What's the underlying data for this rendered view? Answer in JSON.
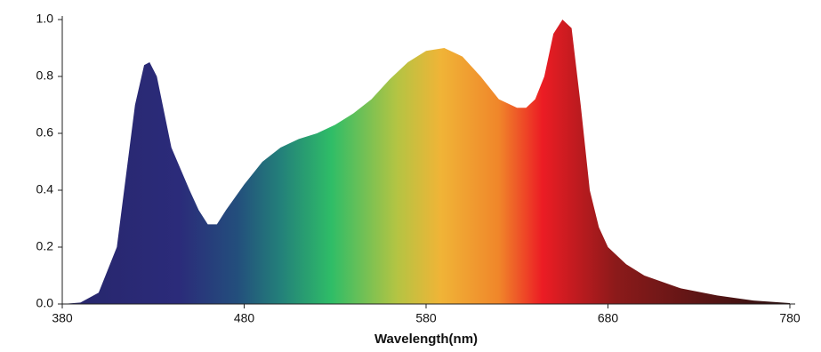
{
  "chart_data": {
    "type": "area",
    "xlabel": "Wavelength(nm)",
    "x": [
      380,
      390,
      400,
      410,
      415,
      420,
      425,
      428,
      432,
      440,
      450,
      455,
      460,
      465,
      470,
      480,
      490,
      500,
      510,
      520,
      530,
      540,
      550,
      560,
      570,
      580,
      590,
      600,
      610,
      620,
      630,
      635,
      640,
      645,
      650,
      655,
      660,
      665,
      670,
      675,
      680,
      690,
      700,
      720,
      740,
      760,
      780
    ],
    "values": [
      0,
      0.005,
      0.04,
      0.2,
      0.45,
      0.7,
      0.84,
      0.85,
      0.8,
      0.55,
      0.4,
      0.33,
      0.28,
      0.28,
      0.33,
      0.42,
      0.5,
      0.55,
      0.58,
      0.6,
      0.63,
      0.67,
      0.72,
      0.79,
      0.85,
      0.89,
      0.9,
      0.87,
      0.8,
      0.72,
      0.69,
      0.69,
      0.72,
      0.8,
      0.95,
      1.0,
      0.97,
      0.7,
      0.4,
      0.27,
      0.2,
      0.14,
      0.1,
      0.055,
      0.03,
      0.012,
      0.003
    ],
    "xlim": [
      380,
      780
    ],
    "ylim": [
      0,
      1
    ],
    "xticks": [
      380,
      480,
      580,
      680,
      780
    ],
    "yticks": [
      {
        "value": 0,
        "label": "0.0"
      },
      0.2,
      0.4,
      0.6,
      0.8,
      {
        "value": 1,
        "label": "1.0"
      }
    ]
  }
}
